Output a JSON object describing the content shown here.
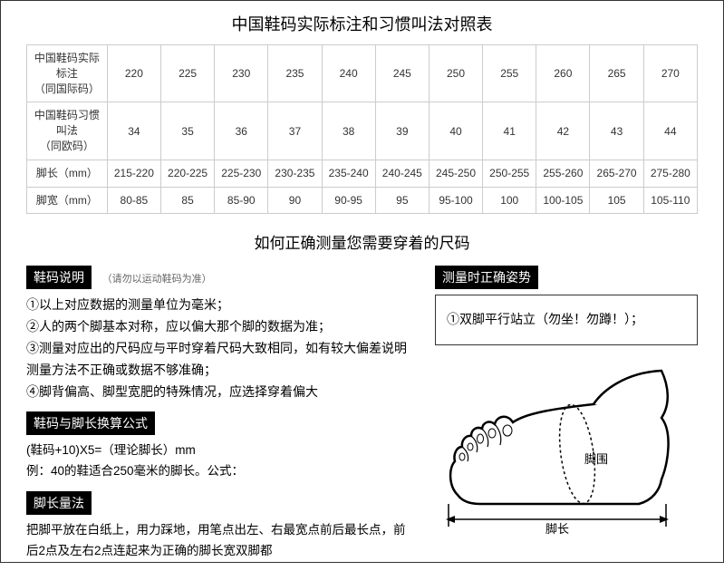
{
  "title": "中国鞋码实际标注和习惯叫法对照表",
  "subtitle": "如何正确测量您需要穿着的尺码",
  "table": {
    "row_headers": [
      "中国鞋码实际标注\n（同国际码）",
      "中国鞋码习惯叫法\n（同欧码）",
      "脚长（mm）",
      "脚宽（mm）"
    ],
    "rows": [
      [
        "220",
        "225",
        "230",
        "235",
        "240",
        "245",
        "250",
        "255",
        "260",
        "265",
        "270"
      ],
      [
        "34",
        "35",
        "36",
        "37",
        "38",
        "39",
        "40",
        "41",
        "42",
        "43",
        "44"
      ],
      [
        "215-220",
        "220-225",
        "225-230",
        "230-235",
        "235-240",
        "240-245",
        "245-250",
        "250-255",
        "255-260",
        "265-270",
        "275-280"
      ],
      [
        "80-85",
        "85",
        "85-90",
        "90",
        "90-95",
        "95",
        "95-100",
        "100",
        "100-105",
        "105",
        "105-110"
      ]
    ]
  },
  "section1": {
    "tag": "鞋码说明",
    "note": "（请勿以运动鞋码为准）",
    "lines": [
      "①以上对应数据的测量单位为毫米；",
      "②人的两个脚基本对称，应以偏大那个脚的数据为准；",
      "③测量对应出的尺码应与平时穿着尺码大致相同，如有较大偏差说明测量方法不正确或数据不够准确；",
      "④脚背偏高、脚型宽肥的特殊情况，应选择穿着偏大"
    ]
  },
  "section2": {
    "tag": "鞋码与脚长换算公式",
    "lines": [
      "(鞋码+10)X5=（理论脚长）mm",
      "例：40的鞋适合250毫米的脚长。公式："
    ]
  },
  "section3": {
    "tag": "脚长量法",
    "text": "把脚平放在白纸上，用力踩地，用笔点出左、右最宽点前后最长点，前后2点及左右2点连起来为正确的脚长宽双脚都"
  },
  "posture": {
    "tag": "测量时正确姿势",
    "text": "①双脚平行站立（勿坐！勿蹲！）；"
  },
  "foot_labels": {
    "circumference": "脚围",
    "length": "脚长"
  }
}
